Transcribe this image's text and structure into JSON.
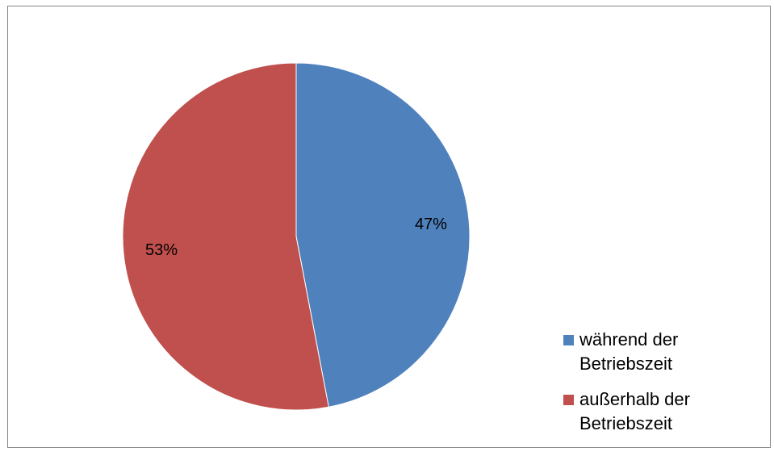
{
  "chart_data": {
    "type": "pie",
    "categories": [
      "während der Betriebszeit",
      "außerhalb der Betriebszeit"
    ],
    "values": [
      47,
      53
    ],
    "labels": [
      "47%",
      "53%"
    ],
    "colors": [
      "#4F81BD",
      "#C0504D"
    ],
    "legend_position": "right-bottom",
    "start_angle": "top",
    "direction": "clockwise"
  },
  "legend": {
    "items": [
      {
        "label": "während der Betriebszeit",
        "color": "#4F81BD"
      },
      {
        "label": "außerhalb der Betriebszeit",
        "color": "#C0504D"
      }
    ]
  }
}
